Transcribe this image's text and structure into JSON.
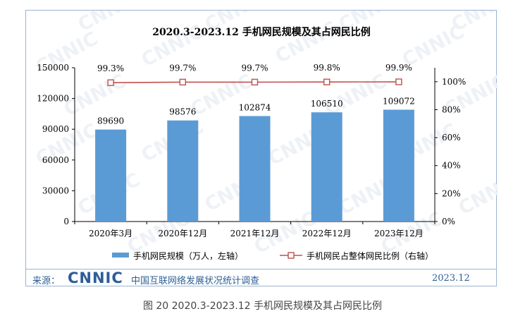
{
  "chart_data": {
    "type": "bar",
    "title": "2020.3-2023.12 手机网民规模及其占网民比例",
    "categories": [
      "2020年3月",
      "2020年12月",
      "2021年12月",
      "2022年12月",
      "2023年12月"
    ],
    "series": [
      {
        "name": "手机网民规模（万人，左轴）",
        "type": "bar",
        "axis": "left",
        "values": [
          89690,
          98576,
          102874,
          106510,
          109072
        ],
        "labels": [
          "89690",
          "98576",
          "102874",
          "106510",
          "109072"
        ]
      },
      {
        "name": "手机网民占整体网民比例（右轴）",
        "type": "line",
        "axis": "right",
        "values": [
          99.3,
          99.7,
          99.7,
          99.8,
          99.9
        ],
        "labels": [
          "99.3%",
          "99.7%",
          "99.7%",
          "99.8%",
          "99.9%"
        ]
      }
    ],
    "y_left": {
      "range": [
        0,
        150000
      ],
      "ticks": [
        "0",
        "30000",
        "60000",
        "90000",
        "120000",
        "150000"
      ]
    },
    "y_right": {
      "range": [
        0,
        110
      ],
      "ticks": [
        "0%",
        "20%",
        "40%",
        "60%",
        "80%",
        "100%"
      ]
    },
    "legend": "bottom",
    "colors": {
      "bar": "#5b9bd5",
      "line": "#c0504d",
      "watermark": "#eef2f6"
    }
  },
  "watermark_text": "CNNIC",
  "footer": {
    "source_label": "来源：",
    "logo_text": "CNNIC",
    "report_name": "中国互联网络发展状况统计调查",
    "date": "2023.12"
  },
  "caption": "图 20  2020.3-2023.12 手机网民规模及其占网民比例"
}
